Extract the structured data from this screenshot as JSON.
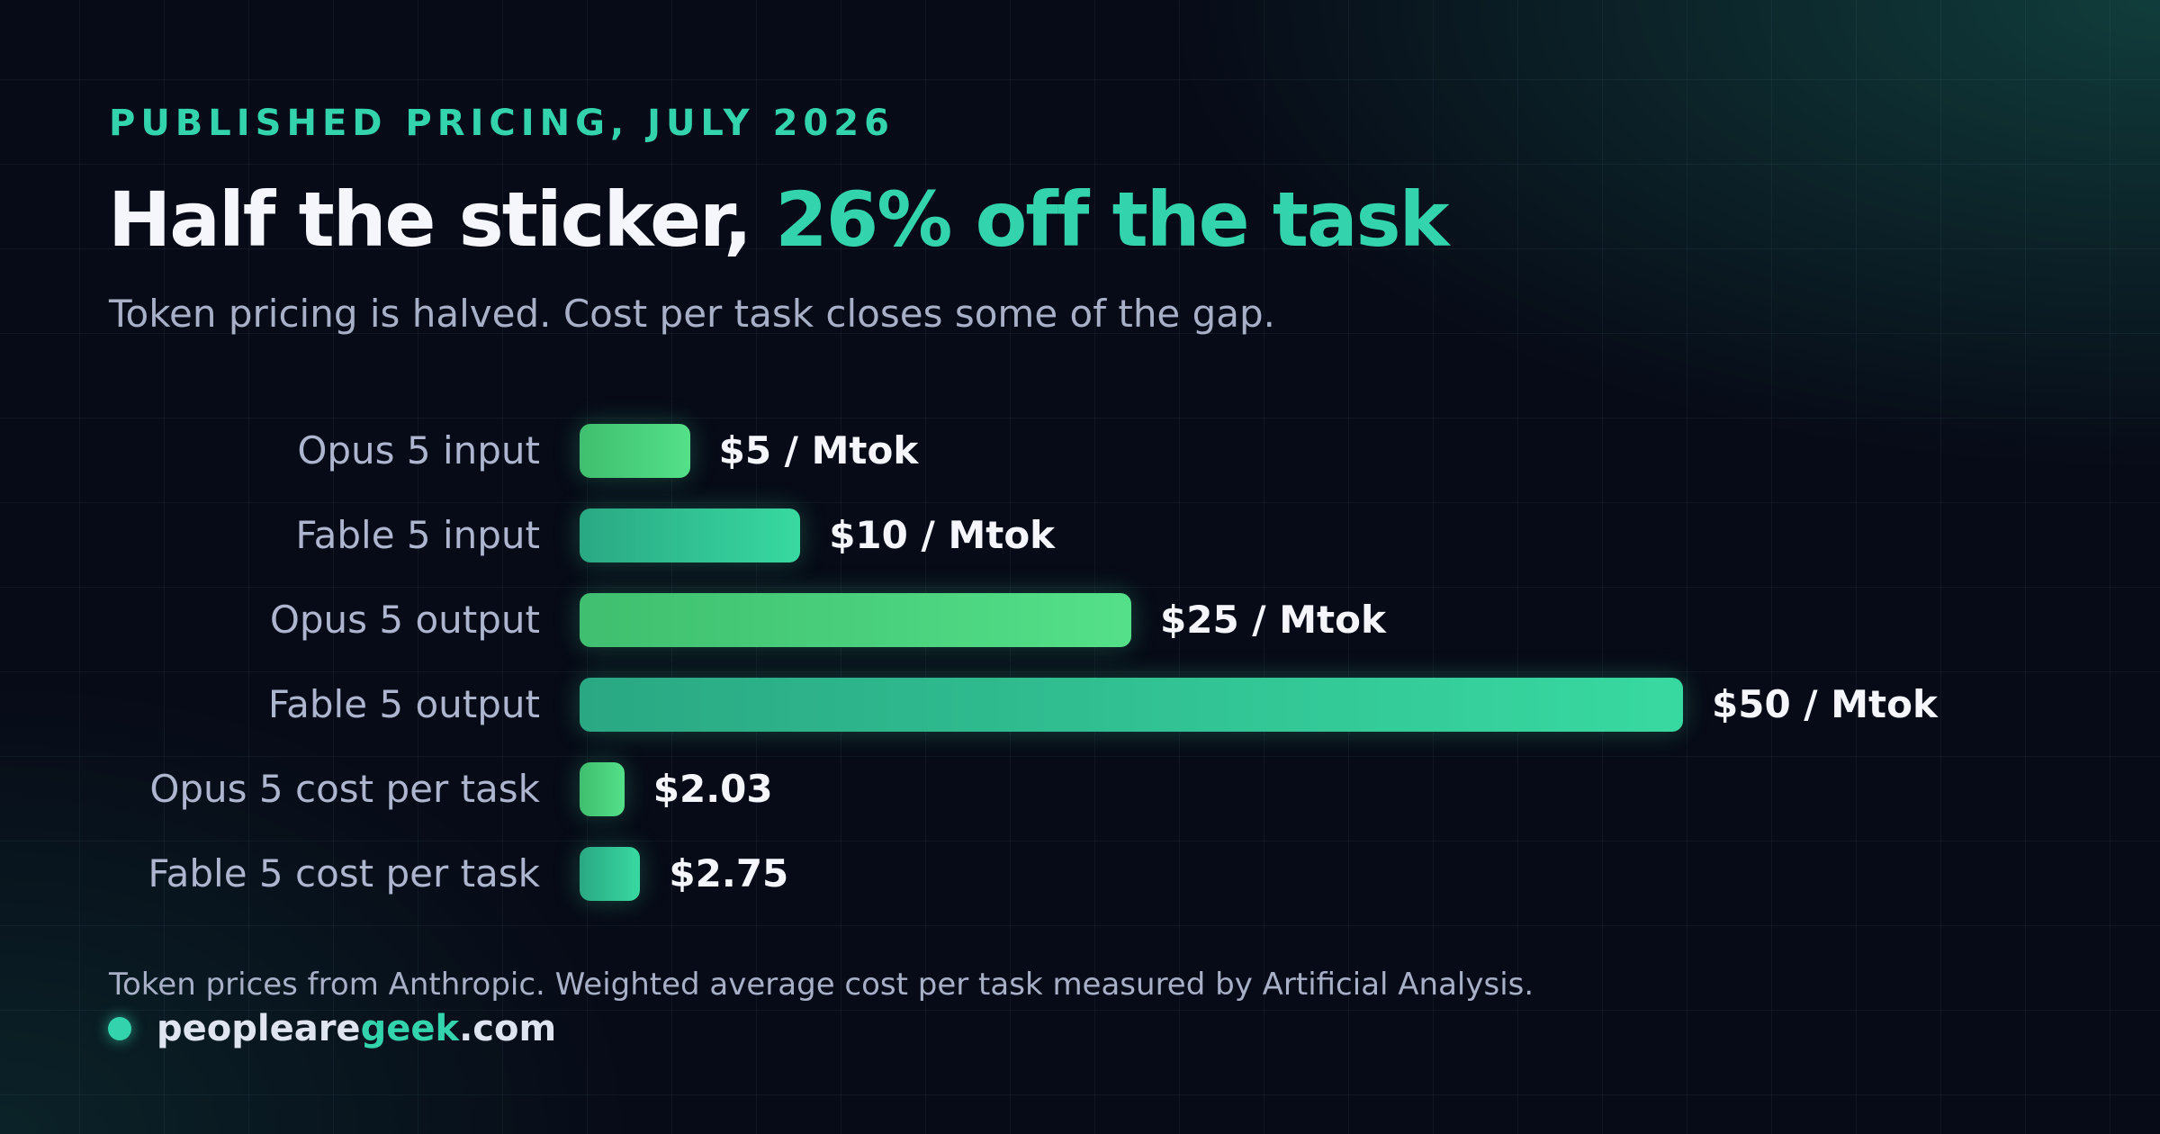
{
  "header": {
    "kicker": "PUBLISHED PRICING, JULY 2026",
    "title_main": "Half the sticker, ",
    "title_accent": "26% off the task",
    "subtitle": "Token pricing is halved. Cost per task closes some of the gap."
  },
  "chart_data": {
    "type": "bar",
    "orientation": "horizontal",
    "title": "Half the sticker, 26% off the task",
    "subtitle": "Token pricing is halved. Cost per task closes some of the gap.",
    "xlabel": "",
    "ylabel": "",
    "grid": false,
    "legend": "none",
    "categories": [
      "Opus 5 input",
      "Fable 5 input",
      "Opus 5 output",
      "Fable 5 output",
      "Opus 5 cost per task",
      "Fable 5 cost per task"
    ],
    "values": [
      5,
      10,
      25,
      50,
      2.03,
      2.75
    ],
    "value_labels": [
      "$5 / Mtok",
      "$10 / Mtok",
      "$25 / Mtok",
      "$50 / Mtok",
      "$2.03",
      "$2.75"
    ],
    "models": [
      "opus",
      "fable",
      "opus",
      "fable",
      "opus",
      "fable"
    ],
    "xlim": [
      0,
      50
    ],
    "colors": {
      "opus": "#4fd882",
      "fable": "#33d3a0"
    }
  },
  "footer": {
    "note": "Token prices from Anthropic. Weighted average cost per task measured by Artificial Analysis.",
    "brand_prefix": "peopleare",
    "brand_accent": "geek",
    "brand_suffix": ".com"
  }
}
